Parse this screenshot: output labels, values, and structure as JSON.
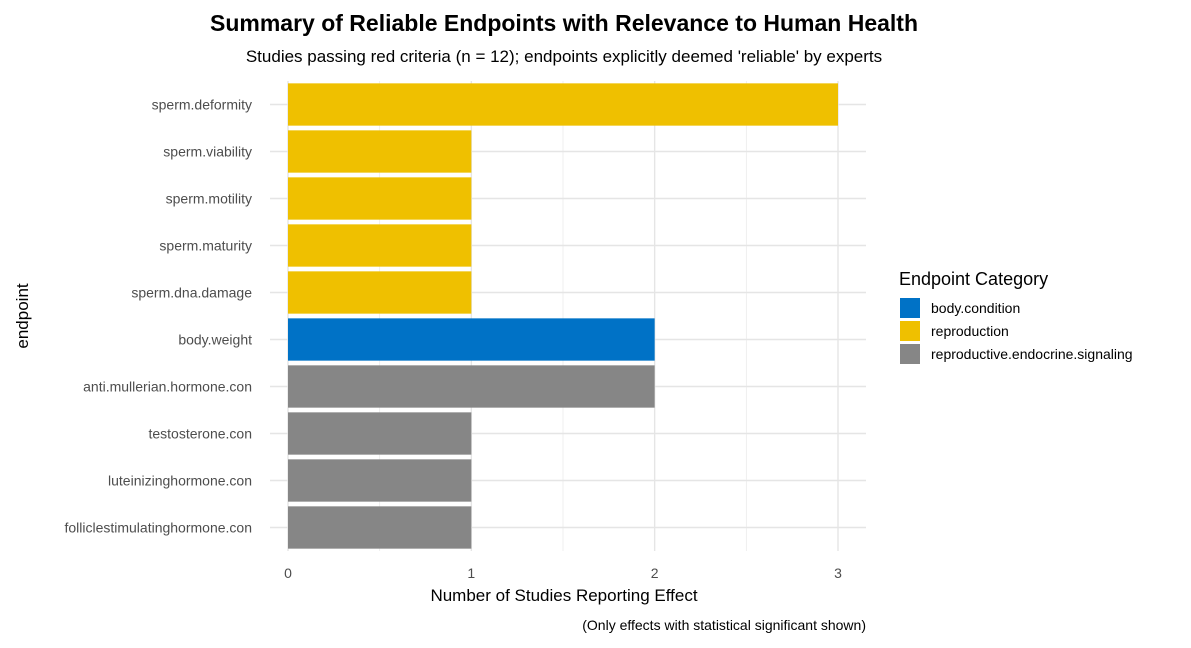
{
  "chart_data": {
    "type": "bar",
    "orientation": "horizontal",
    "title": "Summary of Reliable Endpoints with Relevance to Human Health",
    "subtitle": "Studies passing red criteria (n = 12); endpoints explicitly deemed 'reliable' by experts",
    "caption": "(Only effects with statistical significant shown)",
    "xlabel": "Number of Studies Reporting Effect",
    "ylabel": "endpoint",
    "xlim": [
      0,
      3.15
    ],
    "x_ticks": [
      0,
      1,
      2,
      3
    ],
    "grid": true,
    "legend": {
      "title": "Endpoint Category",
      "position": "right",
      "entries": [
        {
          "label": "body.condition",
          "color": "#0072C6"
        },
        {
          "label": "reproduction",
          "color": "#EFC000"
        },
        {
          "label": "reproductive.endocrine.signaling",
          "color": "#868686"
        }
      ]
    },
    "categories": [
      "sperm.deformity",
      "sperm.viability",
      "sperm.motility",
      "sperm.maturity",
      "sperm.dna.damage",
      "body.weight",
      "anti.mullerian.hormone.con",
      "testosterone.con",
      "luteinizinghormone.con",
      "folliclestimulatinghormone.con"
    ],
    "values": [
      3,
      1,
      1,
      1,
      1,
      2,
      2,
      1,
      1,
      1
    ],
    "groups": [
      "reproduction",
      "reproduction",
      "reproduction",
      "reproduction",
      "reproduction",
      "body.condition",
      "reproductive.endocrine.signaling",
      "reproductive.endocrine.signaling",
      "reproductive.endocrine.signaling",
      "reproductive.endocrine.signaling"
    ]
  }
}
